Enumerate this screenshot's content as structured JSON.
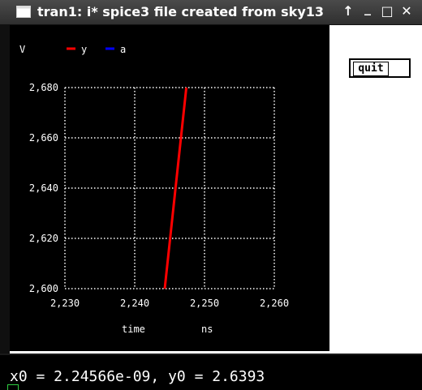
{
  "window": {
    "title": "tran1: i* spice3 file created from sky13",
    "icons": {
      "app": "window-icon",
      "up": "arrow-up-icon",
      "minimize": "minimize-icon",
      "maximize": "maximize-icon",
      "close": "close-icon"
    },
    "up_glyph": "↑",
    "minimize_glyph": "_",
    "maximize_glyph": "□",
    "close_glyph": "✕"
  },
  "toolbar": {
    "quit_label": "quit"
  },
  "status": {
    "readout": "x0 = 2.24566e-09, y0 = 2.6393"
  },
  "colors": {
    "plot_bg": "#000000",
    "y": "#ff0000",
    "a": "#0000ff",
    "grid": "#ffffff"
  },
  "chart_data": {
    "type": "line",
    "ylabel": "V",
    "xlabel": "time",
    "xunit": "ns",
    "xlim": [
      2.23,
      2.26
    ],
    "ylim": [
      2.6,
      2.68
    ],
    "xticks": [
      "2,230",
      "2,240",
      "2,250",
      "2,260"
    ],
    "yticks": [
      "2,600",
      "2,620",
      "2,640",
      "2,660",
      "2,680"
    ],
    "grid": true,
    "series": [
      {
        "name": "y",
        "color": "#ff0000",
        "x": [
          2.2443,
          2.2474
        ],
        "y": [
          2.6,
          2.68
        ]
      },
      {
        "name": "a",
        "color": "#0000ff",
        "x": [],
        "y": []
      }
    ]
  }
}
